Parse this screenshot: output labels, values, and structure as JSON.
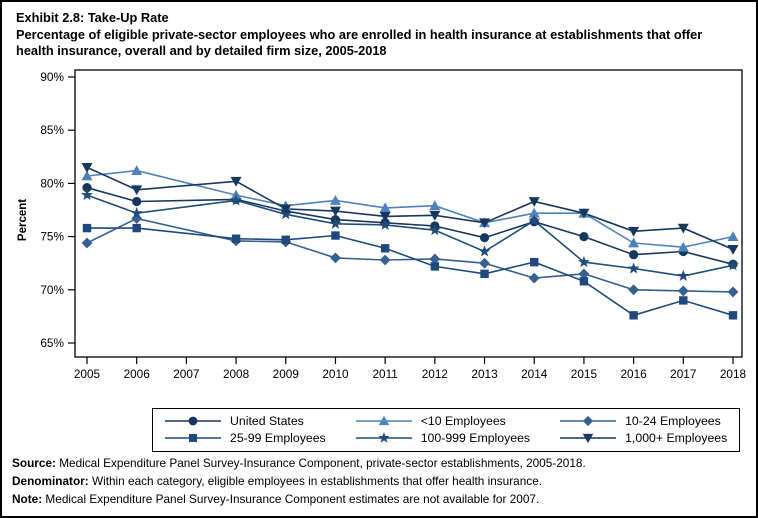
{
  "figure": {
    "title_line1": "Exhibit 2.8: Take-Up Rate",
    "title_rest": "Percentage of eligible private-sector employees who are enrolled in health insurance at establishments that offer health insurance, overall and by detailed firm size, 2005-2018"
  },
  "chart_data": {
    "type": "line",
    "x": [
      2005,
      2006,
      2007,
      2008,
      2009,
      2010,
      2011,
      2012,
      2013,
      2014,
      2015,
      2016,
      2017,
      2018
    ],
    "x_tick_labels": [
      "2005",
      "2006",
      "2007",
      "2008",
      "2009",
      "2010",
      "2011",
      "2012",
      "2013",
      "2014",
      "2015",
      "2016",
      "2017",
      "2018"
    ],
    "ylabel": "Percent",
    "ylim": [
      65,
      90
    ],
    "y_ticks": [
      65,
      70,
      75,
      80,
      85,
      90
    ],
    "y_tick_labels": [
      "65%",
      "70%",
      "75%",
      "80%",
      "85%",
      "90%"
    ],
    "grid": false,
    "legend_position": "bottom",
    "note": "No data plotted for 2007",
    "series": [
      {
        "name": "United States",
        "marker": "circle",
        "color": "#17375E",
        "values": [
          79.6,
          78.3,
          null,
          78.5,
          77.4,
          76.6,
          76.3,
          76.0,
          74.9,
          76.4,
          75.0,
          73.3,
          73.6,
          72.4
        ]
      },
      {
        "name": "<10 Employees",
        "marker": "triangle-up",
        "color": "#4F81BD",
        "values": [
          80.7,
          81.2,
          null,
          78.9,
          77.9,
          78.4,
          77.7,
          77.9,
          76.3,
          77.2,
          77.2,
          74.4,
          74.0,
          75.0
        ]
      },
      {
        "name": "10-24 Employees",
        "marker": "diamond",
        "color": "#376092",
        "values": [
          74.4,
          76.7,
          null,
          74.6,
          74.5,
          73.0,
          72.8,
          72.9,
          72.5,
          71.1,
          71.5,
          70.0,
          69.9,
          69.8
        ]
      },
      {
        "name": "25-99 Employees",
        "marker": "square",
        "color": "#1F497D",
        "values": [
          75.8,
          75.8,
          null,
          74.8,
          74.7,
          75.1,
          73.9,
          72.2,
          71.5,
          72.6,
          70.8,
          67.6,
          69.0,
          67.6
        ]
      },
      {
        "name": "100-999 Employees",
        "marker": "star",
        "color": "#1F4E79",
        "values": [
          78.9,
          77.2,
          null,
          78.4,
          77.1,
          76.2,
          76.1,
          75.6,
          73.6,
          76.5,
          72.6,
          72.0,
          71.3,
          72.3
        ]
      },
      {
        "name": "1,000+ Employees",
        "marker": "triangle-down",
        "color": "#17375E",
        "values": [
          81.5,
          79.4,
          null,
          80.2,
          77.6,
          77.4,
          76.9,
          77.0,
          76.3,
          78.3,
          77.2,
          75.5,
          75.8,
          73.8
        ]
      }
    ]
  },
  "footer": {
    "items": [
      {
        "label": "Source:",
        "text": " Medical Expenditure Panel Survey-Insurance Component, private-sector establishments, 2005-2018."
      },
      {
        "label": "Denominator:",
        "text": " Within each category, eligible employees in establishments that offer health insurance."
      },
      {
        "label": "Note:",
        "text": " Medical Expenditure Panel Survey-Insurance Component estimates are not available for 2007."
      }
    ]
  }
}
